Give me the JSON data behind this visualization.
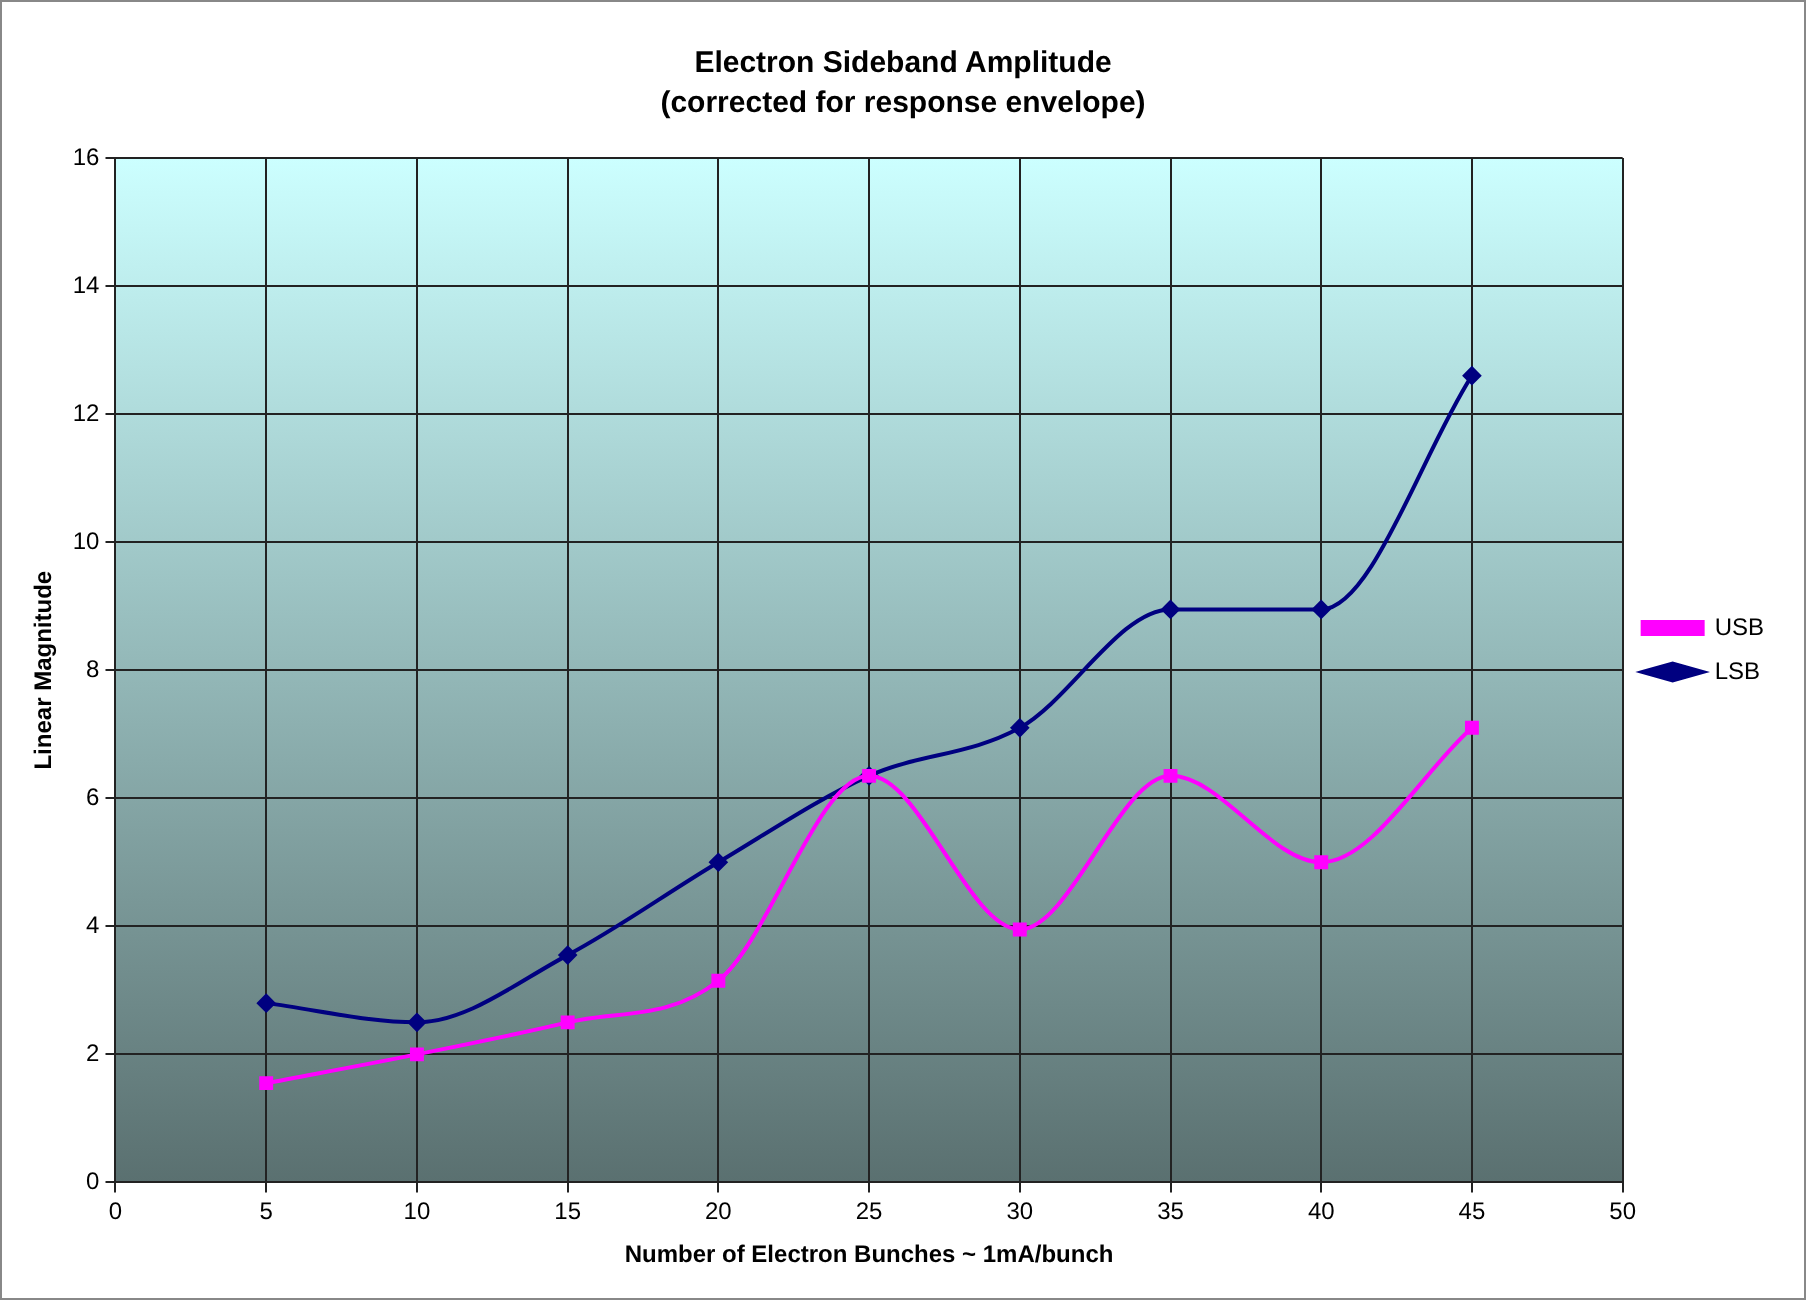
{
  "chart_data": {
    "type": "line",
    "title": "Electron Sideband Amplitude",
    "subtitle": "(corrected for response envelope)",
    "xlabel": "Number of Electron Bunches ~ 1mA/bunch",
    "ylabel": "Linear Magnitude",
    "x": [
      5,
      10,
      15,
      20,
      25,
      30,
      35,
      40,
      45
    ],
    "series": [
      {
        "name": "LSB",
        "color": "#000080",
        "marker": "diamond",
        "values": [
          2.8,
          2.5,
          3.55,
          5.0,
          6.35,
          7.1,
          8.95,
          8.95,
          12.6
        ]
      },
      {
        "name": "USB",
        "color": "#ff00ff",
        "marker": "square",
        "values": [
          1.55,
          2.0,
          2.5,
          3.15,
          6.35,
          3.95,
          6.35,
          5.0,
          7.1
        ]
      }
    ],
    "xlim": [
      0,
      50
    ],
    "xticks": [
      0,
      5,
      10,
      15,
      20,
      25,
      30,
      35,
      40,
      45,
      50
    ],
    "ylim": [
      0,
      16
    ],
    "yticks": [
      0,
      2,
      4,
      6,
      8,
      10,
      12,
      14,
      16
    ],
    "grid": true,
    "legend": "right",
    "line_style": "solid"
  }
}
